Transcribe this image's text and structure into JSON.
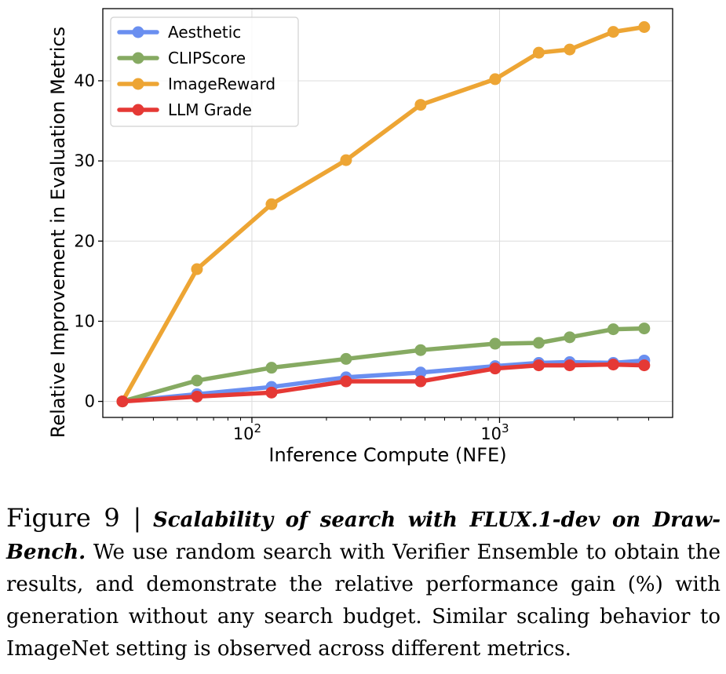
{
  "chart_data": {
    "type": "line",
    "xscale": "log",
    "xlabel": "Inference Compute (NFE)",
    "ylabel": "Relative Improvement in Evaluation Metrics",
    "xlim": [
      25,
      5000
    ],
    "ylim": [
      -2,
      49
    ],
    "x_ticks": [
      {
        "value": 100,
        "base": "10",
        "exp": "2"
      },
      {
        "value": 1000,
        "base": "10",
        "exp": "3"
      }
    ],
    "y_ticks": [
      0,
      10,
      20,
      30,
      40
    ],
    "y_tick_labels": [
      "0",
      "10",
      "20",
      "30",
      "40"
    ],
    "grid": true,
    "legend_position": "top-left",
    "x": [
      30,
      60,
      120,
      240,
      480,
      960,
      1440,
      1920,
      2880,
      3840
    ],
    "series": [
      {
        "name": "Aesthetic",
        "color": "#6a8ff0",
        "values": [
          0,
          0.9,
          1.8,
          3.0,
          3.6,
          4.4,
          4.8,
          4.9,
          4.8,
          5.1
        ]
      },
      {
        "name": "CLIPScore",
        "color": "#86aa62",
        "values": [
          0,
          2.6,
          4.2,
          5.3,
          6.4,
          7.2,
          7.3,
          8.0,
          9.0,
          9.1
        ]
      },
      {
        "name": "ImageReward",
        "color": "#eda534",
        "values": [
          0,
          16.5,
          24.6,
          30.1,
          37.0,
          40.2,
          43.5,
          43.9,
          46.1,
          46.7
        ]
      },
      {
        "name": "LLM Grade",
        "color": "#e53935",
        "values": [
          0,
          0.6,
          1.1,
          2.5,
          2.5,
          4.1,
          4.5,
          4.5,
          4.6,
          4.5
        ]
      }
    ]
  },
  "caption": {
    "label": "Figure 9 |",
    "title": "Scalability of search with FLUX.1-dev on Draw-Bench.",
    "body": "We use random search with Verifier Ensemble to obtain the results, and demonstrate the relative performance gain (%) with generation without any search budget. Similar scaling behavior to ImageNet setting is observed across different metrics."
  }
}
